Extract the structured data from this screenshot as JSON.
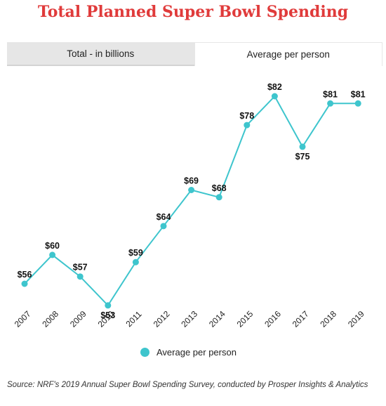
{
  "title": "Total Planned Super Bowl Spending",
  "tabs": [
    {
      "label": "Total - in billions",
      "active": false
    },
    {
      "label": "Average per person",
      "active": true
    }
  ],
  "colors": {
    "title": "#e03b3b",
    "series": "#3ec5cd",
    "tab_inactive": "#e6e6e6"
  },
  "chart_data": {
    "type": "line",
    "title": "Total Planned Super Bowl Spending",
    "x": [
      "2007",
      "2008",
      "2009",
      "2010",
      "2011",
      "2012",
      "2013",
      "2014",
      "2015",
      "2016",
      "2017",
      "2018",
      "2019"
    ],
    "series": [
      {
        "name": "Average per person",
        "values": [
          56,
          60,
          57,
          53,
          59,
          64,
          69,
          68,
          78,
          82,
          75,
          81,
          81
        ],
        "labels": [
          "$56",
          "$60",
          "$57",
          "$53",
          "$59",
          "$64",
          "$69",
          "$68",
          "$78",
          "$82",
          "$75",
          "$81",
          "$81"
        ]
      }
    ],
    "legend": "bottom",
    "grid": false,
    "ylim": [
      50,
      85
    ]
  },
  "legend_label": "Average per person",
  "source": "Source: NRF's 2019 Annual Super Bowl Spending Survey, conducted by Prosper Insights & Analytics"
}
